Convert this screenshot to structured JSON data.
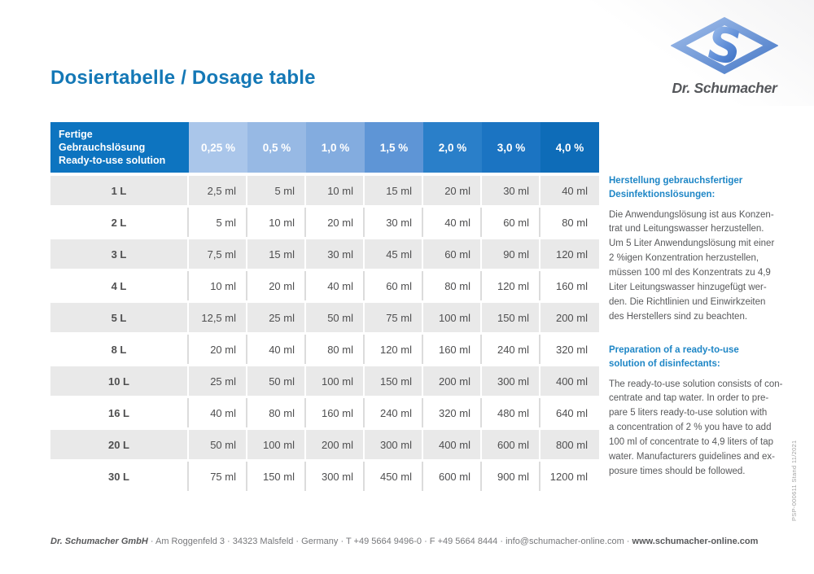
{
  "theme": {
    "title-color": "#1478b6",
    "header-label-bg": "#0d74c0",
    "row-stripe": "#e9e9e9",
    "cell-text": "#4f4f50",
    "sidebar-heading": "#1e86c6",
    "body-text": "#58595b",
    "footer-text": "#77787b",
    "brand-text": "#54565a"
  },
  "page": {
    "title": "Dosiertabelle / Dosage table"
  },
  "brand": {
    "name": "Dr. Schumacher",
    "logo_icon": "diamond-s-icon"
  },
  "table": {
    "header": {
      "label": "Fertige\nGebrauchslösung\nReady-to-use solution",
      "columns": [
        {
          "label": "0,25 %",
          "color": "#aac6ea"
        },
        {
          "label": "0,5 %",
          "color": "#97b9e4"
        },
        {
          "label": "1,0 %",
          "color": "#83acdf"
        },
        {
          "label": "1,5 %",
          "color": "#5e95d6"
        },
        {
          "label": "2,0 %",
          "color": "#2a7fc9"
        },
        {
          "label": "3,0 %",
          "color": "#1b74c2"
        },
        {
          "label": "4,0 %",
          "color": "#0e6cb8"
        }
      ]
    },
    "rows": [
      {
        "label": "1 L",
        "values": [
          "2,5 ml",
          "5 ml",
          "10 ml",
          "15 ml",
          "20 ml",
          "30 ml",
          "40 ml"
        ]
      },
      {
        "label": "2 L",
        "values": [
          "5 ml",
          "10 ml",
          "20 ml",
          "30 ml",
          "40 ml",
          "60 ml",
          "80 ml"
        ]
      },
      {
        "label": "3 L",
        "values": [
          "7,5 ml",
          "15 ml",
          "30 ml",
          "45 ml",
          "60 ml",
          "90 ml",
          "120 ml"
        ]
      },
      {
        "label": "4 L",
        "values": [
          "10 ml",
          "20 ml",
          "40 ml",
          "60 ml",
          "80 ml",
          "120 ml",
          "160 ml"
        ]
      },
      {
        "label": "5 L",
        "values": [
          "12,5 ml",
          "25 ml",
          "50 ml",
          "75 ml",
          "100 ml",
          "150 ml",
          "200 ml"
        ]
      },
      {
        "label": "8 L",
        "values": [
          "20 ml",
          "40 ml",
          "80 ml",
          "120 ml",
          "160 ml",
          "240 ml",
          "320 ml"
        ]
      },
      {
        "label": "10 L",
        "values": [
          "25 ml",
          "50 ml",
          "100 ml",
          "150 ml",
          "200 ml",
          "300 ml",
          "400 ml"
        ]
      },
      {
        "label": "16 L",
        "values": [
          "40 ml",
          "80 ml",
          "160 ml",
          "240 ml",
          "320 ml",
          "480 ml",
          "640 ml"
        ]
      },
      {
        "label": "20 L",
        "values": [
          "50 ml",
          "100 ml",
          "200 ml",
          "300 ml",
          "400 ml",
          "600 ml",
          "800 ml"
        ]
      },
      {
        "label": "30 L",
        "values": [
          "75 ml",
          "150 ml",
          "300 ml",
          "450 ml",
          "600 ml",
          "900 ml",
          "1200 ml"
        ]
      }
    ]
  },
  "sidebar": {
    "de": {
      "heading": "Herstellung gebrauchsfertiger\nDesinfektionslösungen:",
      "body": "Die Anwendungslösung ist aus Konzen-\ntrat und Leitungswasser herzustellen.\nUm 5 Liter Anwendungslösung mit einer\n2 %igen Konzentration herzustellen,\nmüssen 100 ml des Konzentrats zu 4,9\nLiter Leitungswasser hinzugefügt wer-\nden. Die Richtlinien und Einwirkzeiten\ndes Herstellers sind zu beachten."
    },
    "en": {
      "heading": "Preparation of a ready-to-use\nsolution of disinfectants:",
      "body": "The ready-to-use solution consists of con-\ncentrate and tap water. In order to pre-\npare 5 liters ready-to-use solution with\na concentration of 2 % you have to add\n100 ml of concentrate to 4,9 liters of tap\nwater. Manufacturers guidelines and ex-\nposure times should be followed."
    }
  },
  "edge_note": "PSP-000611   Stand 11/2021",
  "footer": {
    "company": "Dr. Schumacher GmbH",
    "contact": " · Am Roggenfeld 3 · 34323 Malsfeld · Germany · T +49 5664 9496-0 · F +49 5664 8444 · info@schumacher-online.com · ",
    "website": "www.schumacher-online.com"
  }
}
